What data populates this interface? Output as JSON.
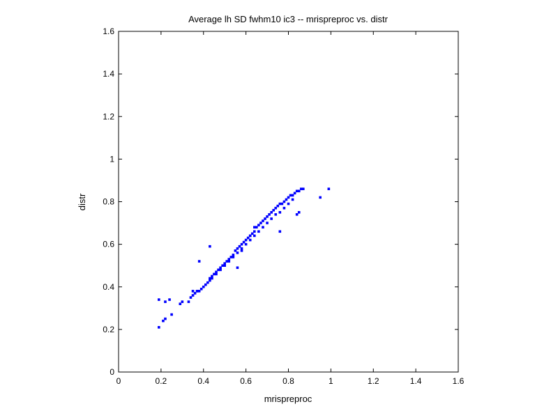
{
  "chart_data": {
    "type": "scatter",
    "title": "Average lh SD fwhm10 ic3 -- mrispreproc vs. distr",
    "xlabel": "mrispreproc",
    "ylabel": "distr",
    "xlim": [
      0,
      1.6
    ],
    "ylim": [
      0,
      1.6
    ],
    "xticks": [
      "0",
      "0.2",
      "0.4",
      "0.6",
      "0.8",
      "1",
      "1.2",
      "1.4",
      "1.6"
    ],
    "yticks": [
      "0",
      "0.2",
      "0.4",
      "0.6",
      "0.8",
      "1",
      "1.2",
      "1.4",
      "1.6"
    ],
    "grid": false,
    "legend": "none",
    "marker_color": "#0000ff",
    "x": [
      0.19,
      0.19,
      0.21,
      0.22,
      0.22,
      0.24,
      0.25,
      0.29,
      0.3,
      0.33,
      0.34,
      0.35,
      0.35,
      0.36,
      0.37,
      0.37,
      0.38,
      0.39,
      0.4,
      0.41,
      0.42,
      0.43,
      0.43,
      0.44,
      0.45,
      0.46,
      0.47,
      0.48,
      0.49,
      0.5,
      0.51,
      0.52,
      0.53,
      0.54,
      0.55,
      0.56,
      0.57,
      0.58,
      0.59,
      0.6,
      0.61,
      0.62,
      0.63,
      0.64,
      0.65,
      0.66,
      0.67,
      0.68,
      0.69,
      0.7,
      0.71,
      0.72,
      0.73,
      0.74,
      0.75,
      0.76,
      0.77,
      0.78,
      0.79,
      0.8,
      0.81,
      0.82,
      0.83,
      0.84,
      0.85,
      0.86,
      0.87,
      0.44,
      0.46,
      0.48,
      0.5,
      0.52,
      0.54,
      0.56,
      0.58,
      0.6,
      0.62,
      0.64,
      0.66,
      0.68,
      0.7,
      0.72,
      0.74,
      0.76,
      0.78,
      0.8,
      0.82,
      0.43,
      0.58,
      0.62,
      0.64,
      0.56,
      0.38,
      0.76,
      0.84,
      0.85,
      0.95,
      0.99
    ],
    "y": [
      0.21,
      0.34,
      0.24,
      0.33,
      0.25,
      0.34,
      0.27,
      0.32,
      0.33,
      0.33,
      0.35,
      0.36,
      0.38,
      0.37,
      0.38,
      0.38,
      0.38,
      0.39,
      0.4,
      0.41,
      0.42,
      0.43,
      0.44,
      0.45,
      0.46,
      0.47,
      0.48,
      0.49,
      0.5,
      0.51,
      0.52,
      0.53,
      0.54,
      0.55,
      0.57,
      0.58,
      0.59,
      0.6,
      0.61,
      0.62,
      0.63,
      0.64,
      0.65,
      0.66,
      0.68,
      0.69,
      0.7,
      0.71,
      0.72,
      0.73,
      0.74,
      0.75,
      0.76,
      0.77,
      0.78,
      0.79,
      0.79,
      0.8,
      0.81,
      0.82,
      0.83,
      0.83,
      0.84,
      0.85,
      0.85,
      0.86,
      0.86,
      0.44,
      0.46,
      0.48,
      0.5,
      0.52,
      0.54,
      0.56,
      0.58,
      0.6,
      0.62,
      0.64,
      0.66,
      0.68,
      0.7,
      0.72,
      0.74,
      0.75,
      0.77,
      0.79,
      0.81,
      0.59,
      0.57,
      0.64,
      0.68,
      0.49,
      0.52,
      0.66,
      0.74,
      0.75,
      0.82,
      0.86
    ]
  }
}
